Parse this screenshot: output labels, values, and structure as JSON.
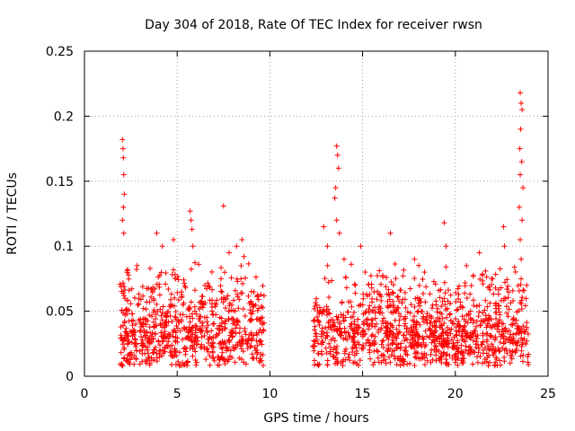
{
  "chart_data": {
    "type": "scatter",
    "title": "Day 304 of 2018, Rate Of TEC Index for receiver rwsn",
    "xlabel": "GPS time / hours",
    "ylabel": "ROTI / TECUs",
    "xlim": [
      0,
      25
    ],
    "ylim": [
      0,
      0.25
    ],
    "x_ticks": [
      0,
      5,
      10,
      15,
      20,
      25
    ],
    "x_tick_labels": [
      "0",
      "5",
      "10",
      "15",
      "20",
      "25"
    ],
    "y_ticks": [
      0,
      0.05,
      0.1,
      0.15,
      0.2,
      0.25
    ],
    "y_tick_labels": [
      "0",
      "0.05",
      "0.1",
      "0.15",
      "0.2",
      "0.25"
    ],
    "grid": true,
    "marker": "+",
    "series": [
      {
        "name": "ROTI",
        "color": "#ff0000",
        "data_windows_hours": [
          [
            1.9,
            9.7
          ],
          [
            12.3,
            23.95
          ]
        ],
        "points": [
          [
            2.05,
            0.182
          ],
          [
            2.08,
            0.175
          ],
          [
            2.1,
            0.168
          ],
          [
            2.12,
            0.155
          ],
          [
            2.15,
            0.14
          ],
          [
            2.1,
            0.13
          ],
          [
            2.05,
            0.12
          ],
          [
            2.12,
            0.11
          ],
          [
            3.9,
            0.11
          ],
          [
            4.2,
            0.1
          ],
          [
            4.8,
            0.105
          ],
          [
            5.7,
            0.127
          ],
          [
            5.75,
            0.12
          ],
          [
            5.8,
            0.113
          ],
          [
            5.85,
            0.1
          ],
          [
            7.5,
            0.131
          ],
          [
            7.8,
            0.095
          ],
          [
            8.2,
            0.1
          ],
          [
            8.5,
            0.105
          ],
          [
            8.6,
            0.092
          ],
          [
            8.45,
            0.085
          ],
          [
            12.9,
            0.115
          ],
          [
            13.1,
            0.1
          ],
          [
            13.6,
            0.177
          ],
          [
            13.65,
            0.17
          ],
          [
            13.7,
            0.16
          ],
          [
            13.55,
            0.145
          ],
          [
            13.5,
            0.137
          ],
          [
            13.6,
            0.12
          ],
          [
            13.75,
            0.11
          ],
          [
            14.0,
            0.09
          ],
          [
            14.9,
            0.1
          ],
          [
            16.5,
            0.11
          ],
          [
            17.8,
            0.09
          ],
          [
            19.4,
            0.118
          ],
          [
            19.5,
            0.1
          ],
          [
            20.6,
            0.085
          ],
          [
            21.3,
            0.095
          ],
          [
            22.6,
            0.115
          ],
          [
            22.65,
            0.1
          ],
          [
            23.5,
            0.218
          ],
          [
            23.55,
            0.21
          ],
          [
            23.6,
            0.205
          ],
          [
            23.52,
            0.19
          ],
          [
            23.48,
            0.175
          ],
          [
            23.58,
            0.165
          ],
          [
            23.5,
            0.155
          ],
          [
            23.65,
            0.145
          ],
          [
            23.45,
            0.13
          ],
          [
            23.6,
            0.12
          ],
          [
            23.5,
            0.105
          ],
          [
            23.55,
            0.09
          ]
        ],
        "baseline_range": [
          0.008,
          0.09
        ]
      }
    ]
  }
}
